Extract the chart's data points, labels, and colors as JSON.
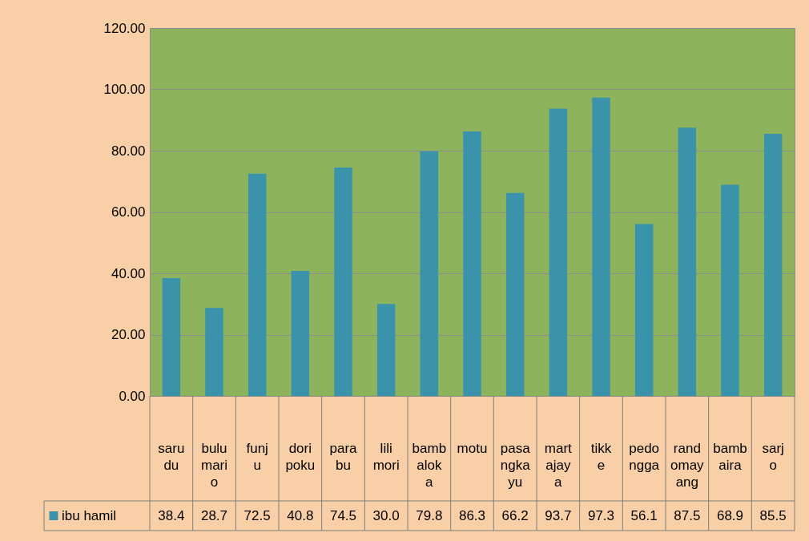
{
  "chart_data": {
    "type": "bar",
    "categories": [
      "sarudu",
      "bulumario",
      "funju",
      "doripoku",
      "parabu",
      "lilimori",
      "bambaloka",
      "motu",
      "pasangkayu",
      "martajaya",
      "tikke",
      "pedongga",
      "randomayang",
      "bambaira",
      "sarjo"
    ],
    "series": [
      {
        "name": "ibu hamil",
        "color": "#3b93ab",
        "values": [
          38.4,
          28.7,
          72.5,
          40.8,
          74.5,
          30.0,
          79.8,
          86.3,
          66.2,
          93.7,
          97.3,
          56.1,
          87.5,
          68.9,
          85.5
        ],
        "value_labels": [
          "38.4",
          "28.7",
          "72.5",
          "40.8",
          "74.5",
          "30.0",
          "79.8",
          "86.3",
          "66.2",
          "93.7",
          "97.3",
          "56.1",
          "87.5",
          "68.9",
          "85.5"
        ]
      }
    ],
    "ylim": [
      0,
      120
    ],
    "yticks": [
      {
        "value": 0,
        "label": "0.00"
      },
      {
        "value": 20,
        "label": "20.00"
      },
      {
        "value": 40,
        "label": "40.00"
      },
      {
        "value": 60,
        "label": "60.00"
      },
      {
        "value": 80,
        "label": "80.00"
      },
      {
        "value": 100,
        "label": "100.00"
      },
      {
        "value": 120,
        "label": "120.00"
      }
    ],
    "grid": "y",
    "legend": "bottom"
  }
}
